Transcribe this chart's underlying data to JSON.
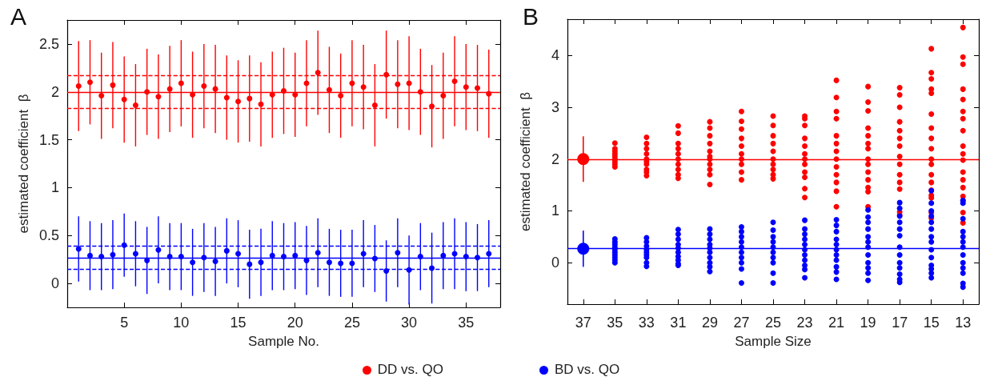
{
  "chart_data": [
    {
      "type": "scatter",
      "title": "A",
      "xlabel": "Sample No.",
      "ylabel": "estimated coefficient  β",
      "x": [
        1,
        2,
        3,
        4,
        5,
        6,
        7,
        8,
        9,
        10,
        11,
        12,
        13,
        14,
        15,
        16,
        17,
        18,
        19,
        20,
        21,
        22,
        23,
        24,
        25,
        26,
        27,
        28,
        29,
        30,
        31,
        32,
        33,
        34,
        35,
        36,
        37
      ],
      "xlim": [
        0,
        38
      ],
      "xticks": [
        5,
        10,
        15,
        20,
        25,
        30,
        35
      ],
      "ylim": [
        -0.25,
        2.75
      ],
      "yticks": [
        0,
        0.5,
        1,
        1.5,
        2,
        2.5
      ],
      "grid": false,
      "legend": "bottom",
      "marker": "circle",
      "series": [
        {
          "name": "DD vs. QO",
          "color": "#ff0000",
          "values": [
            2.06,
            2.1,
            1.96,
            2.07,
            1.92,
            1.86,
            2.0,
            1.95,
            2.03,
            2.09,
            1.97,
            2.06,
            2.03,
            1.94,
            1.9,
            1.93,
            1.87,
            1.97,
            2.01,
            1.97,
            2.09,
            2.2,
            2.02,
            1.96,
            2.09,
            2.05,
            1.86,
            2.18,
            2.08,
            2.09,
            2.0,
            1.85,
            1.96,
            2.11,
            2.05,
            2.04,
            1.98
          ],
          "errors": [
            0.47,
            0.44,
            0.45,
            0.45,
            0.45,
            0.43,
            0.45,
            0.44,
            0.45,
            0.45,
            0.45,
            0.44,
            0.46,
            0.44,
            0.43,
            0.45,
            0.44,
            0.45,
            0.45,
            0.44,
            0.45,
            0.44,
            0.45,
            0.44,
            0.45,
            0.44,
            0.43,
            0.46,
            0.46,
            0.49,
            0.45,
            0.43,
            0.45,
            0.47,
            0.45,
            0.45,
            0.46
          ]
        },
        {
          "name": "BD vs. QO",
          "color": "#0000ff",
          "values": [
            0.36,
            0.29,
            0.28,
            0.3,
            0.4,
            0.31,
            0.24,
            0.35,
            0.28,
            0.28,
            0.22,
            0.27,
            0.23,
            0.34,
            0.31,
            0.2,
            0.22,
            0.29,
            0.28,
            0.29,
            0.24,
            0.32,
            0.22,
            0.21,
            0.21,
            0.31,
            0.26,
            0.13,
            0.32,
            0.14,
            0.28,
            0.16,
            0.29,
            0.31,
            0.28,
            0.27,
            0.31
          ],
          "errors": [
            0.34,
            0.36,
            0.35,
            0.36,
            0.33,
            0.34,
            0.35,
            0.35,
            0.35,
            0.35,
            0.35,
            0.36,
            0.36,
            0.34,
            0.35,
            0.36,
            0.35,
            0.36,
            0.35,
            0.35,
            0.36,
            0.36,
            0.35,
            0.35,
            0.35,
            0.35,
            0.35,
            0.32,
            0.36,
            0.36,
            0.35,
            0.37,
            0.35,
            0.37,
            0.36,
            0.35,
            0.35
          ]
        }
      ],
      "ref_lines": [
        {
          "axis": "y",
          "value": 2.0,
          "color": "#ff0000",
          "line_style": "solid"
        },
        {
          "axis": "y",
          "value": 2.17,
          "color": "#ff0000",
          "line_style": "dashed"
        },
        {
          "axis": "y",
          "value": 1.83,
          "color": "#ff0000",
          "line_style": "dashed"
        },
        {
          "axis": "y",
          "value": 0.27,
          "color": "#0000ff",
          "line_style": "solid"
        },
        {
          "axis": "y",
          "value": 0.39,
          "color": "#0000ff",
          "line_style": "dashed"
        },
        {
          "axis": "y",
          "value": 0.15,
          "color": "#0000ff",
          "line_style": "dashed"
        }
      ]
    },
    {
      "type": "scatter",
      "title": "B",
      "xlabel": "Sample Size",
      "ylabel": "estimated coefficient  β",
      "categories": [
        "37",
        "35",
        "33",
        "31",
        "29",
        "27",
        "25",
        "23",
        "21",
        "19",
        "17",
        "15",
        "13"
      ],
      "ylim": [
        -0.8,
        4.7
      ],
      "yticks": [
        0,
        1,
        2,
        3,
        4
      ],
      "grid": false,
      "marker": "circle",
      "series": [
        {
          "color": "#ff0000",
          "x": [
            "35",
            "35",
            "35",
            "35",
            "35",
            "35",
            "35",
            "35",
            "35",
            "33",
            "33",
            "33",
            "33",
            "33",
            "33",
            "33",
            "33",
            "33",
            "33",
            "31",
            "31",
            "31",
            "31",
            "31",
            "31",
            "31",
            "31",
            "31",
            "31",
            "29",
            "29",
            "29",
            "29",
            "29",
            "29",
            "29",
            "29",
            "29",
            "29",
            "29",
            "27",
            "27",
            "27",
            "27",
            "27",
            "27",
            "27",
            "27",
            "27",
            "27",
            "25",
            "25",
            "25",
            "25",
            "25",
            "25",
            "25",
            "25",
            "25",
            "25",
            "23",
            "23",
            "23",
            "23",
            "23",
            "23",
            "23",
            "23",
            "23",
            "23",
            "23",
            "23",
            "21",
            "21",
            "21",
            "21",
            "21",
            "21",
            "21",
            "21",
            "21",
            "21",
            "21",
            "21",
            "21",
            "19",
            "19",
            "19",
            "19",
            "19",
            "19",
            "19",
            "19",
            "19",
            "19",
            "19",
            "19",
            "19",
            "19",
            "17",
            "17",
            "17",
            "17",
            "17",
            "17",
            "17",
            "17",
            "17",
            "17",
            "17",
            "17",
            "17",
            "17",
            "15",
            "15",
            "15",
            "15",
            "15",
            "15",
            "15",
            "15",
            "15",
            "15",
            "15",
            "15",
            "15",
            "15",
            "15",
            "15",
            "15",
            "15",
            "13",
            "13",
            "13",
            "13",
            "13",
            "13",
            "13",
            "13",
            "13",
            "13",
            "13",
            "13",
            "13",
            "13",
            "13",
            "13",
            "13",
            "13"
          ],
          "values": [
            2.31,
            2.2,
            2.15,
            2.1,
            2.05,
            2.0,
            1.95,
            1.9,
            1.85,
            2.42,
            2.3,
            2.2,
            2.1,
            2.0,
            1.95,
            1.9,
            1.8,
            1.75,
            1.68,
            2.64,
            2.5,
            2.3,
            2.2,
            2.1,
            2.0,
            1.9,
            1.8,
            1.7,
            1.63,
            2.72,
            2.6,
            2.45,
            2.3,
            2.15,
            2.05,
            2.0,
            1.9,
            1.8,
            1.7,
            1.51,
            2.92,
            2.73,
            2.58,
            2.4,
            2.25,
            2.1,
            2.0,
            1.9,
            1.75,
            1.6,
            2.83,
            2.65,
            2.45,
            2.3,
            2.15,
            2.0,
            1.9,
            1.8,
            1.7,
            1.62,
            2.83,
            2.78,
            2.65,
            2.4,
            2.25,
            2.1,
            2.0,
            1.9,
            1.75,
            1.65,
            1.43,
            1.26,
            3.52,
            3.19,
            2.92,
            2.78,
            2.45,
            2.3,
            2.15,
            2.0,
            1.85,
            1.7,
            1.55,
            1.38,
            1.08,
            3.4,
            3.1,
            2.93,
            2.6,
            2.45,
            2.3,
            2.2,
            2.0,
            1.9,
            1.75,
            1.6,
            1.45,
            1.37,
            1.08,
            3.38,
            3.24,
            3.0,
            2.72,
            2.55,
            2.4,
            2.25,
            2.05,
            1.9,
            1.7,
            1.55,
            1.42,
            0.98,
            0.92,
            4.13,
            3.67,
            3.55,
            3.35,
            3.27,
            2.87,
            2.6,
            2.4,
            2.2,
            2.0,
            1.9,
            1.7,
            1.55,
            1.4,
            1.3,
            1.25,
            0.97,
            0.86,
            4.54,
            3.97,
            3.83,
            3.35,
            3.15,
            2.92,
            2.78,
            2.55,
            2.25,
            2.1,
            1.98,
            1.75,
            1.6,
            1.45,
            1.28,
            1.2,
            0.97,
            0.77
          ]
        },
        {
          "color": "#0000ff",
          "x": [
            "35",
            "35",
            "35",
            "35",
            "35",
            "35",
            "35",
            "35",
            "35",
            "35",
            "33",
            "33",
            "33",
            "33",
            "33",
            "33",
            "33",
            "33",
            "33",
            "31",
            "31",
            "31",
            "31",
            "31",
            "31",
            "31",
            "31",
            "31",
            "31",
            "29",
            "29",
            "29",
            "29",
            "29",
            "29",
            "29",
            "29",
            "29",
            "29",
            "27",
            "27",
            "27",
            "27",
            "27",
            "27",
            "27",
            "27",
            "27",
            "27",
            "25",
            "25",
            "25",
            "25",
            "25",
            "25",
            "25",
            "25",
            "25",
            "25",
            "23",
            "23",
            "23",
            "23",
            "23",
            "23",
            "23",
            "23",
            "23",
            "23",
            "23",
            "21",
            "21",
            "21",
            "21",
            "21",
            "21",
            "21",
            "21",
            "21",
            "21",
            "21",
            "19",
            "19",
            "19",
            "19",
            "19",
            "19",
            "19",
            "19",
            "19",
            "19",
            "19",
            "19",
            "17",
            "17",
            "17",
            "17",
            "17",
            "17",
            "17",
            "17",
            "17",
            "17",
            "17",
            "17",
            "17",
            "15",
            "15",
            "15",
            "15",
            "15",
            "15",
            "15",
            "15",
            "15",
            "15",
            "15",
            "15",
            "15",
            "15",
            "13",
            "13",
            "13",
            "13",
            "13",
            "13",
            "13",
            "13",
            "13",
            "13",
            "13",
            "13",
            "13"
          ],
          "values": [
            0.46,
            0.4,
            0.35,
            0.3,
            0.25,
            0.2,
            0.15,
            0.1,
            0.05,
            0.0,
            0.48,
            0.4,
            0.32,
            0.25,
            0.2,
            0.15,
            0.1,
            0.0,
            -0.07,
            0.64,
            0.55,
            0.45,
            0.35,
            0.28,
            0.2,
            0.12,
            0.05,
            -0.02,
            -0.05,
            0.65,
            0.55,
            0.45,
            0.35,
            0.28,
            0.2,
            0.1,
            0.0,
            -0.08,
            -0.17,
            0.69,
            0.6,
            0.5,
            0.4,
            0.3,
            0.2,
            0.1,
            0.0,
            -0.12,
            -0.39,
            0.78,
            0.63,
            0.5,
            0.4,
            0.3,
            0.2,
            0.1,
            0.0,
            -0.2,
            -0.39,
            0.82,
            0.65,
            0.55,
            0.45,
            0.35,
            0.25,
            0.15,
            0.05,
            -0.05,
            -0.13,
            -0.29,
            0.83,
            0.72,
            0.6,
            0.45,
            0.35,
            0.25,
            0.15,
            0.05,
            -0.08,
            -0.18,
            -0.32,
            1.02,
            0.88,
            0.78,
            0.65,
            0.5,
            0.4,
            0.3,
            0.15,
            0.0,
            -0.1,
            -0.2,
            -0.34,
            1.16,
            1.05,
            0.9,
            0.78,
            0.65,
            0.52,
            0.3,
            0.15,
            0.0,
            -0.1,
            -0.22,
            -0.32,
            -0.38,
            1.39,
            1.15,
            1.0,
            0.9,
            0.78,
            0.65,
            0.5,
            0.4,
            0.25,
            0.1,
            -0.05,
            -0.12,
            -0.2,
            -0.29,
            1.2,
            1.15,
            0.85,
            0.6,
            0.5,
            0.4,
            0.3,
            0.15,
            0.0,
            -0.1,
            -0.2,
            -0.4,
            -0.47
          ]
        },
        {
          "color": "#ff0000",
          "x": [
            "37"
          ],
          "values": [
            2.0
          ],
          "errors": [
            0.44
          ]
        },
        {
          "color": "#0000ff",
          "x": [
            "37"
          ],
          "values": [
            0.27
          ],
          "errors": [
            0.35
          ]
        }
      ],
      "ref_lines": [
        {
          "axis": "y",
          "value": 2.0,
          "color": "#ff0000",
          "line_style": "solid"
        },
        {
          "axis": "y",
          "value": 0.27,
          "color": "#0000ff",
          "line_style": "solid"
        }
      ]
    }
  ]
}
